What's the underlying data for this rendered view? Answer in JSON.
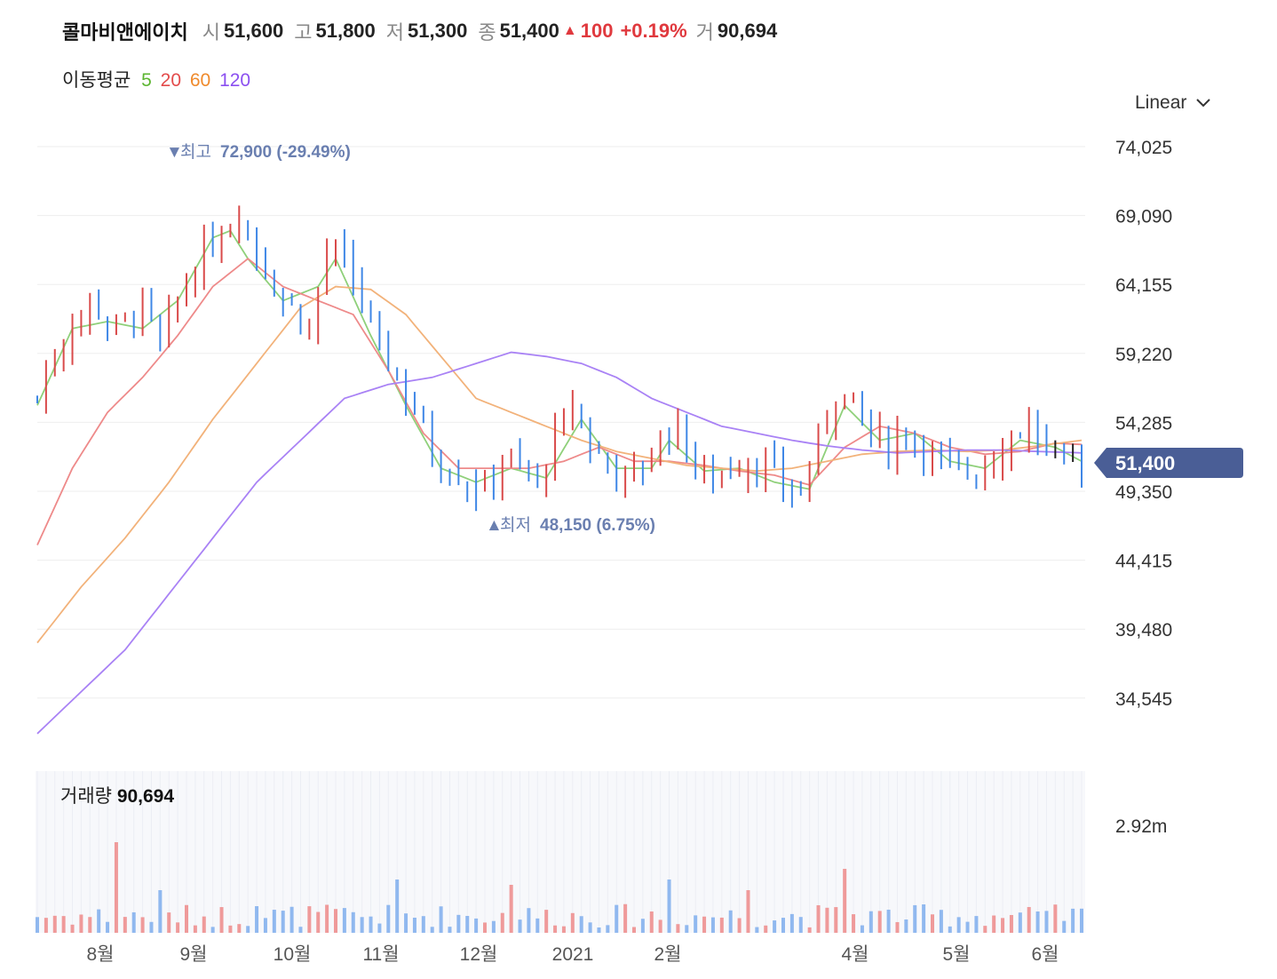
{
  "header": {
    "name": "콜마비앤에이치",
    "open_label": "시",
    "open": "51,600",
    "high_label": "고",
    "high": "51,800",
    "low_label": "저",
    "low": "51,300",
    "close_label": "종",
    "close": "51,400",
    "change_arrow": "▲",
    "change": "100",
    "change_pct": "+0.19%",
    "volume_label": "거",
    "volume": "90,694"
  },
  "ma_legend": {
    "label": "이동평균",
    "items": [
      {
        "period": "5",
        "color": "#5cb531"
      },
      {
        "period": "20",
        "color": "#e34b4b"
      },
      {
        "period": "60",
        "color": "#ef8a2c"
      },
      {
        "period": "120",
        "color": "#8b4ff0"
      }
    ]
  },
  "scale_selector": {
    "value": "Linear",
    "icon": "chevron-down-icon"
  },
  "colors": {
    "up": "#d94a4a",
    "down": "#3f87e6",
    "current_tag": "#4a5e96",
    "annot": "#6a7fb0"
  },
  "chart_data": {
    "type": "candlestick",
    "y_ticks": [
      "74,025",
      "69,090",
      "64,155",
      "59,220",
      "54,285",
      "49,350",
      "44,415",
      "39,480",
      "34,545"
    ],
    "y_tick_values": [
      74025,
      69090,
      64155,
      59220,
      54285,
      49350,
      44415,
      39480,
      34545
    ],
    "x_labels": [
      "8월",
      "9월",
      "10월",
      "11월",
      "12월",
      "2021",
      "2월",
      "4월",
      "5월",
      "6월"
    ],
    "current_price_label": "51,400",
    "high_annotation": {
      "arrow": "▼",
      "label": "최고",
      "value": "72,900 (-29.49%)"
    },
    "low_annotation": {
      "arrow": "▲",
      "label": "최저",
      "value": "48,150 (6.75%)"
    },
    "close_path": [
      [
        0,
        56000
      ],
      [
        3,
        60500
      ],
      [
        6,
        63000
      ],
      [
        9,
        61000
      ],
      [
        12,
        62500
      ],
      [
        14,
        60000
      ],
      [
        18,
        65500
      ],
      [
        21,
        68000
      ],
      [
        23,
        69500
      ],
      [
        25,
        66500
      ],
      [
        27,
        64000
      ],
      [
        29,
        62500
      ],
      [
        31,
        61000
      ],
      [
        33,
        66500
      ],
      [
        35,
        65500
      ],
      [
        37,
        63000
      ],
      [
        39,
        59500
      ],
      [
        41,
        57500
      ],
      [
        43,
        55500
      ],
      [
        45,
        52000
      ],
      [
        47,
        51000
      ],
      [
        49,
        50000
      ],
      [
        51,
        49500
      ],
      [
        53,
        52000
      ],
      [
        55,
        51000
      ],
      [
        57,
        50000
      ],
      [
        59,
        53000
      ],
      [
        61,
        55500
      ],
      [
        63,
        52500
      ],
      [
        65,
        51500
      ],
      [
        67,
        50500
      ],
      [
        69,
        51000
      ],
      [
        71,
        53000
      ],
      [
        73,
        54000
      ],
      [
        75,
        51000
      ],
      [
        77,
        50500
      ],
      [
        79,
        51000
      ],
      [
        81,
        51500
      ],
      [
        83,
        51000
      ],
      [
        85,
        50000
      ],
      [
        87,
        49000
      ],
      [
        89,
        53000
      ],
      [
        91,
        56500
      ],
      [
        93,
        55500
      ],
      [
        95,
        53500
      ],
      [
        97,
        52500
      ],
      [
        99,
        54000
      ],
      [
        101,
        52500
      ],
      [
        103,
        51500
      ],
      [
        105,
        51000
      ],
      [
        107,
        50500
      ],
      [
        109,
        52000
      ],
      [
        111,
        53500
      ],
      [
        113,
        54000
      ],
      [
        115,
        52500
      ],
      [
        117,
        51500
      ],
      [
        119,
        51400
      ]
    ],
    "candle_count": 120,
    "ma": [
      {
        "period": "5",
        "path": [
          [
            0,
            55500
          ],
          [
            4,
            61000
          ],
          [
            8,
            61500
          ],
          [
            12,
            61000
          ],
          [
            16,
            63000
          ],
          [
            20,
            67500
          ],
          [
            22,
            68000
          ],
          [
            24,
            66000
          ],
          [
            28,
            63000
          ],
          [
            32,
            64000
          ],
          [
            34,
            66000
          ],
          [
            38,
            60500
          ],
          [
            42,
            55500
          ],
          [
            46,
            51000
          ],
          [
            50,
            50000
          ],
          [
            54,
            51000
          ],
          [
            58,
            50300
          ],
          [
            62,
            54500
          ],
          [
            66,
            51000
          ],
          [
            70,
            51000
          ],
          [
            72,
            53000
          ],
          [
            76,
            50800
          ],
          [
            80,
            51000
          ],
          [
            84,
            50000
          ],
          [
            88,
            49500
          ],
          [
            92,
            55500
          ],
          [
            96,
            53000
          ],
          [
            100,
            53500
          ],
          [
            104,
            51500
          ],
          [
            108,
            51000
          ],
          [
            112,
            53000
          ],
          [
            116,
            52500
          ],
          [
            119,
            51500
          ]
        ]
      },
      {
        "period": "20",
        "path": [
          [
            0,
            45500
          ],
          [
            4,
            51000
          ],
          [
            8,
            55000
          ],
          [
            12,
            57500
          ],
          [
            16,
            60500
          ],
          [
            20,
            64000
          ],
          [
            24,
            66000
          ],
          [
            28,
            64000
          ],
          [
            32,
            63000
          ],
          [
            36,
            62000
          ],
          [
            40,
            58000
          ],
          [
            44,
            53500
          ],
          [
            48,
            51000
          ],
          [
            52,
            51000
          ],
          [
            56,
            51000
          ],
          [
            60,
            51500
          ],
          [
            64,
            52500
          ],
          [
            68,
            51500
          ],
          [
            72,
            51500
          ],
          [
            76,
            51200
          ],
          [
            80,
            50800
          ],
          [
            84,
            50500
          ],
          [
            88,
            49800
          ],
          [
            92,
            52500
          ],
          [
            96,
            54000
          ],
          [
            100,
            53500
          ],
          [
            104,
            52500
          ],
          [
            108,
            52000
          ],
          [
            112,
            52200
          ],
          [
            116,
            52800
          ],
          [
            119,
            52700
          ]
        ]
      },
      {
        "period": "60",
        "path": [
          [
            0,
            38500
          ],
          [
            5,
            42500
          ],
          [
            10,
            46000
          ],
          [
            15,
            50000
          ],
          [
            20,
            54500
          ],
          [
            25,
            58500
          ],
          [
            30,
            62500
          ],
          [
            34,
            64000
          ],
          [
            38,
            63800
          ],
          [
            42,
            62000
          ],
          [
            46,
            59000
          ],
          [
            50,
            56000
          ],
          [
            54,
            55000
          ],
          [
            58,
            54000
          ],
          [
            62,
            53000
          ],
          [
            66,
            52200
          ],
          [
            70,
            51700
          ],
          [
            74,
            51200
          ],
          [
            78,
            51000
          ],
          [
            82,
            50800
          ],
          [
            86,
            51000
          ],
          [
            90,
            51500
          ],
          [
            94,
            52000
          ],
          [
            98,
            52200
          ],
          [
            102,
            52300
          ],
          [
            106,
            52200
          ],
          [
            110,
            52300
          ],
          [
            114,
            52600
          ],
          [
            119,
            53000
          ]
        ]
      },
      {
        "period": "120",
        "path": [
          [
            0,
            32000
          ],
          [
            5,
            35000
          ],
          [
            10,
            38000
          ],
          [
            15,
            42000
          ],
          [
            20,
            46000
          ],
          [
            25,
            50000
          ],
          [
            30,
            53000
          ],
          [
            35,
            56000
          ],
          [
            40,
            57000
          ],
          [
            45,
            57500
          ],
          [
            50,
            58500
          ],
          [
            54,
            59300
          ],
          [
            58,
            59000
          ],
          [
            62,
            58500
          ],
          [
            66,
            57500
          ],
          [
            70,
            56000
          ],
          [
            74,
            55000
          ],
          [
            78,
            54000
          ],
          [
            82,
            53500
          ],
          [
            86,
            53000
          ],
          [
            90,
            52600
          ],
          [
            94,
            52300
          ],
          [
            98,
            52100
          ],
          [
            102,
            52200
          ],
          [
            106,
            52300
          ],
          [
            110,
            52300
          ],
          [
            114,
            52200
          ],
          [
            119,
            52100
          ]
        ]
      }
    ],
    "volume": {
      "label": "거래량",
      "value": "90,694",
      "y_tick": "2.92m",
      "y_tick_value": 2920000
    }
  }
}
